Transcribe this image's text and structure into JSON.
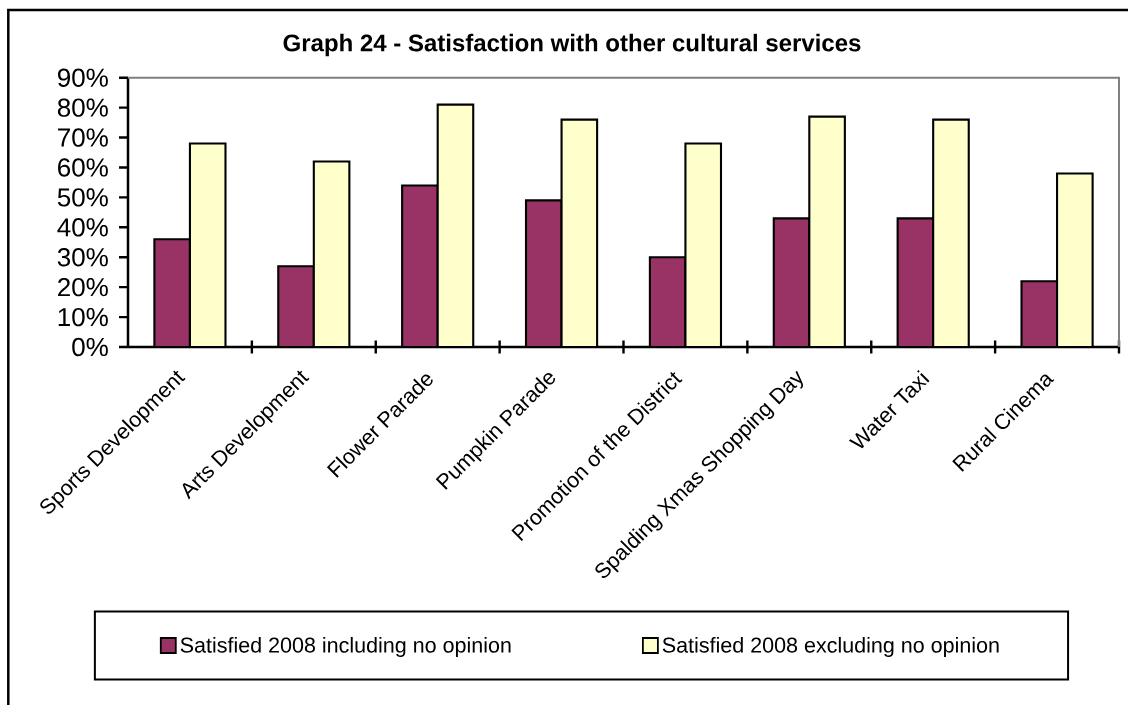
{
  "chart_data": {
    "type": "bar",
    "title": "Graph 24 - Satisfaction with other cultural services",
    "categories": [
      "Sports Development",
      "Arts Development",
      "Flower Parade",
      "Pumpkin Parade",
      "Promotion of the District",
      "Spalding Xmas Shopping Day",
      "Water Taxi",
      "Rural Cinema"
    ],
    "series": [
      {
        "name": "Satisfied 2008 including no opinion",
        "color": "#993366",
        "values": [
          36,
          27,
          54,
          49,
          30,
          43,
          43,
          22
        ]
      },
      {
        "name": "Satisfied 2008 excluding no opinion",
        "color": "#ffffcc",
        "values": [
          68,
          62,
          81,
          76,
          68,
          77,
          76,
          58
        ]
      }
    ],
    "ylim": [
      0,
      90
    ],
    "yticks": [
      {
        "value": 0,
        "label": "0%"
      },
      {
        "value": 10,
        "label": "10%"
      },
      {
        "value": 20,
        "label": "20%"
      },
      {
        "value": 30,
        "label": "30%"
      },
      {
        "value": 40,
        "label": "40%"
      },
      {
        "value": 50,
        "label": "50%"
      },
      {
        "value": 60,
        "label": "60%"
      },
      {
        "value": 70,
        "label": "70%"
      },
      {
        "value": 80,
        "label": "80%"
      },
      {
        "value": 90,
        "label": "90%"
      }
    ],
    "legend": "bottom"
  }
}
